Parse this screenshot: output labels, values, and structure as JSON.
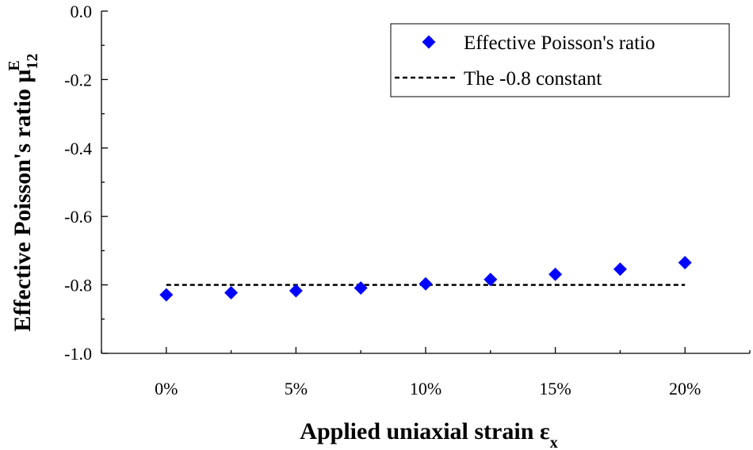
{
  "chart_data": {
    "type": "scatter",
    "x_categories": [
      "0%",
      "5%",
      "10%",
      "15%",
      "20%"
    ],
    "x_values": [
      0,
      2.5,
      5,
      7.5,
      10,
      12.5,
      15,
      17.5,
      20
    ],
    "series": [
      {
        "name": "Effective Poisson's ratio",
        "marker": "diamond",
        "color": "#0000ff",
        "values": [
          -0.829,
          -0.823,
          -0.817,
          -0.809,
          -0.797,
          -0.784,
          -0.769,
          -0.754,
          -0.735
        ]
      },
      {
        "name": "The -0.8 constant",
        "style": "dashed-line",
        "color": "#000000",
        "x": [
          0,
          20
        ],
        "values": [
          -0.8,
          -0.8
        ]
      }
    ],
    "xlim": [
      -2.5,
      22.5
    ],
    "ylim": [
      -1.0,
      0.0
    ],
    "y_ticks": [
      0.0,
      -0.2,
      -0.4,
      -0.6,
      -0.8,
      -1.0
    ],
    "y_tick_labels": [
      "0.0",
      "-0.2",
      "-0.4",
      "-0.6",
      "-0.8",
      "-1.0"
    ],
    "x_ticks": [
      0,
      5,
      10,
      15,
      20
    ],
    "xlabel_main": "Applied uniaxial strain ε",
    "xlabel_sub": "x",
    "ylabel_main": "Effective Poisson's ratio μ",
    "ylabel_sub": "12",
    "ylabel_sup": "E",
    "legend_position": "top-right",
    "grid": false
  }
}
